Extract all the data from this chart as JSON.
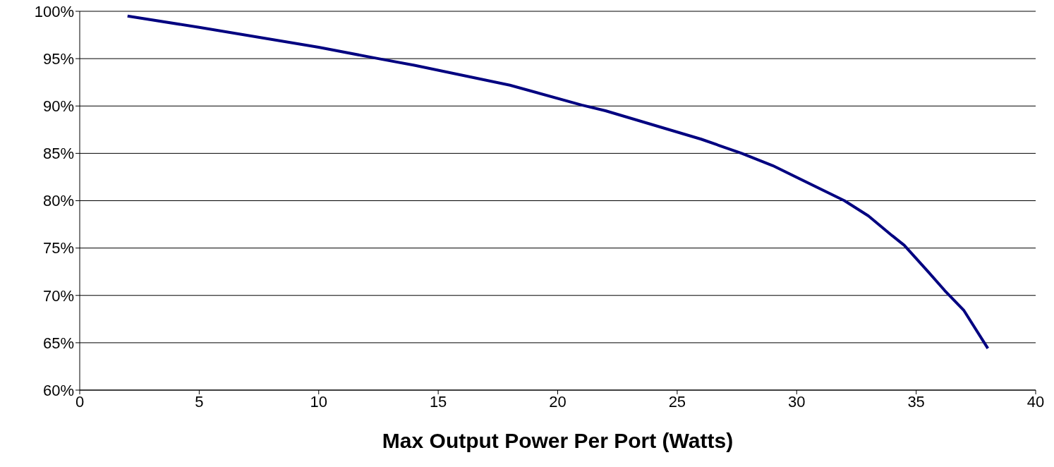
{
  "chart_data": {
    "type": "line",
    "xlabel": "Max Output Power Per Port (Watts)",
    "x": [
      2,
      5,
      10,
      12.5,
      14,
      18,
      21,
      22,
      26,
      27.7,
      29,
      32,
      33,
      34,
      34.5,
      35.5,
      36.2,
      37,
      38
    ],
    "series": [
      {
        "color": "#000080",
        "values": [
          99.5,
          98.3,
          96.2,
          95,
          94.3,
          92.2,
          90.1,
          89.5,
          86.5,
          85,
          83.7,
          80,
          78.4,
          76.3,
          75.3,
          72.5,
          70.5,
          68.4,
          64.4
        ]
      }
    ],
    "xlim": [
      0,
      40
    ],
    "xticks": [
      0,
      5,
      10,
      15,
      20,
      25,
      30,
      35,
      40
    ],
    "ylim": [
      60,
      100
    ],
    "yticks": [
      {
        "value": 60,
        "label": "60%"
      },
      {
        "value": 65,
        "label": "65%"
      },
      {
        "value": 70,
        "label": "70%"
      },
      {
        "value": 75,
        "label": "75%"
      },
      {
        "value": 80,
        "label": "80%"
      },
      {
        "value": 85,
        "label": "85%"
      },
      {
        "value": 90,
        "label": "90%"
      },
      {
        "value": 95,
        "label": "95%"
      },
      {
        "value": 100,
        "label": "100%"
      }
    ],
    "grid": "y",
    "marker": "none",
    "line_style": "solid",
    "legend": false
  }
}
